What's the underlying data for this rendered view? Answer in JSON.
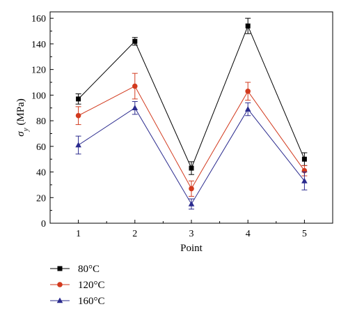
{
  "chart_data": {
    "type": "line",
    "title": "",
    "xlabel": "Point",
    "ylabel_symbol": "σ",
    "ylabel_subscript": "y",
    "ylabel_unit": " (MPa)",
    "x": [
      1,
      2,
      3,
      4,
      5
    ],
    "x_ticks": [
      "1",
      "2",
      "3",
      "4",
      "5"
    ],
    "xlim": [
      0.5,
      5.5
    ],
    "ylim": [
      0,
      165
    ],
    "y_ticks": [
      "0",
      "20",
      "40",
      "60",
      "80",
      "100",
      "120",
      "140",
      "160"
    ],
    "grid": false,
    "legend_position": "bottom-left",
    "series": [
      {
        "name": "80°C",
        "color": "#000000",
        "marker": "square",
        "values": [
          97,
          142,
          43,
          154,
          50
        ],
        "errors": [
          4,
          3,
          5,
          6,
          5
        ]
      },
      {
        "name": "120°C",
        "color": "#d23a1e",
        "marker": "circle",
        "values": [
          84,
          107,
          27,
          103,
          41
        ],
        "errors": [
          7,
          10,
          6,
          7,
          4
        ]
      },
      {
        "name": "160°C",
        "color": "#2b2b8e",
        "marker": "triangle",
        "values": [
          61,
          90,
          15,
          89,
          33
        ],
        "errors": [
          7,
          5,
          4,
          5,
          7
        ]
      }
    ]
  }
}
